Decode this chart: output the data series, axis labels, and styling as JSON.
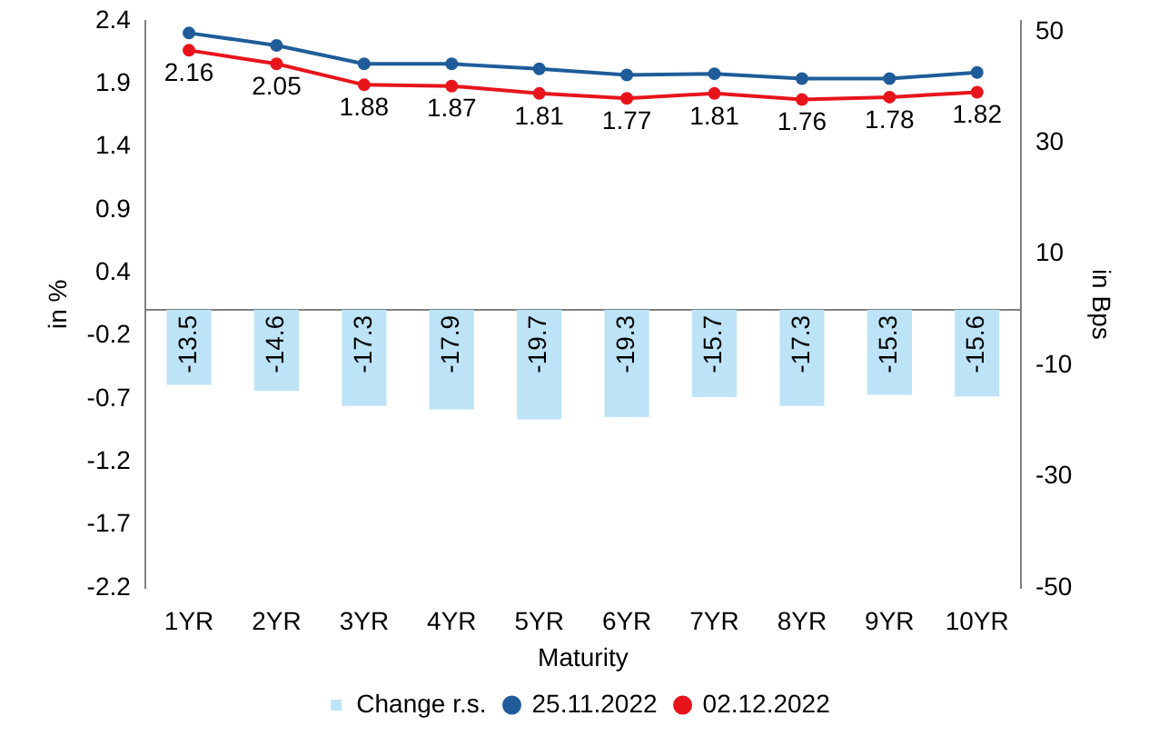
{
  "chart_data": {
    "type": "line",
    "categories": [
      "1YR",
      "2YR",
      "3YR",
      "4YR",
      "5YR",
      "6YR",
      "7YR",
      "8YR",
      "9YR",
      "10YR"
    ],
    "series": [
      {
        "name": "Change r.s.",
        "type": "bar",
        "axis": "y2",
        "color": "#bde3f7",
        "values": [
          -13.5,
          -14.6,
          -17.3,
          -17.9,
          -19.7,
          -19.3,
          -15.7,
          -17.3,
          -15.3,
          -15.6
        ],
        "value_labels": [
          "-13.5",
          "-14.6",
          "-17.3",
          "-17.9",
          "-19.7",
          "-19.3",
          "-15.7",
          "-17.3",
          "-15.3",
          "-15.6"
        ]
      },
      {
        "name": "25.11.2022",
        "color": "#1f5c99",
        "values": [
          2.3,
          2.2,
          2.05,
          2.05,
          2.01,
          1.96,
          1.97,
          1.93,
          1.93,
          1.98
        ]
      },
      {
        "name": "02.12.2022",
        "color": "#e8141c",
        "values": [
          2.16,
          2.05,
          1.88,
          1.87,
          1.81,
          1.77,
          1.81,
          1.76,
          1.78,
          1.82
        ],
        "value_labels": [
          "2.16",
          "2.05",
          "1.88",
          "1.87",
          "1.81",
          "1.77",
          "1.81",
          "1.76",
          "1.78",
          "1.82"
        ]
      }
    ],
    "xlabel": "Maturity",
    "ylabel": "in %",
    "y2label": "in Bps",
    "ylim": [
      -2.2,
      2.4
    ],
    "yticks": [
      {
        "value": 2.4,
        "label": "2.4"
      },
      {
        "value": 1.8889,
        "label": "1.9"
      },
      {
        "value": 1.3778,
        "label": "1.4"
      },
      {
        "value": 0.8667,
        "label": "0.9"
      },
      {
        "value": 0.3556,
        "label": "0.4"
      },
      {
        "value": -0.1556,
        "label": "-0.2"
      },
      {
        "value": -0.6667,
        "label": "-0.7"
      },
      {
        "value": -1.1778,
        "label": "-1.2"
      },
      {
        "value": -1.6889,
        "label": "-1.7"
      },
      {
        "value": -2.2,
        "label": "-2.2"
      }
    ],
    "y2lim": [
      -50,
      52
    ],
    "y2ticks": [
      -50,
      -30,
      -10,
      10,
      30,
      50
    ],
    "ref_lines": [
      {
        "axis": "y2",
        "value": 0,
        "color": "#808080"
      }
    ],
    "grid": false,
    "legend": "bottom",
    "marker": "circle",
    "line_style": "solid"
  }
}
